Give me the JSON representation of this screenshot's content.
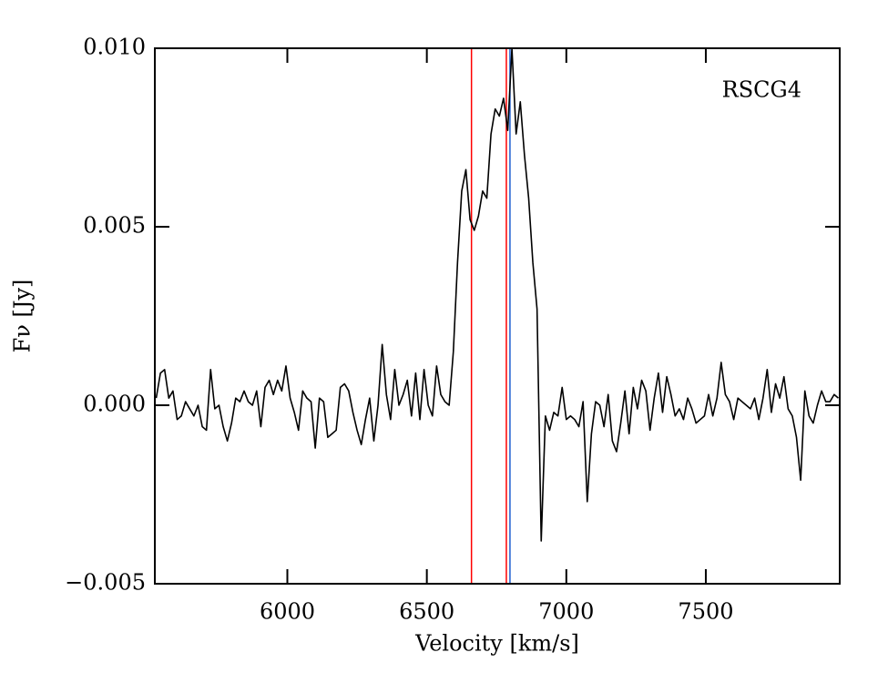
{
  "chart_data": {
    "type": "line",
    "xlabel": "Velocity [km/s]",
    "ylabel": "Fν [Jy]",
    "annotation": "RSCG4",
    "xlim": [
      5525,
      7980
    ],
    "ylim": [
      -0.005,
      0.01
    ],
    "xticks": [
      6000,
      6500,
      7000,
      7500
    ],
    "yticks": [
      {
        "value": -0.005,
        "label": "−0.005"
      },
      {
        "value": 0,
        "label": "0.000"
      },
      {
        "value": 0.005,
        "label": "0.005"
      },
      {
        "value": 0.01,
        "label": "0.010"
      }
    ],
    "vlines": [
      {
        "x": 6660,
        "color": "#ff0000"
      },
      {
        "x": 6785,
        "color": "#ff0000"
      },
      {
        "x": 6798,
        "color": "#1f5fd0"
      }
    ],
    "color": "#000000",
    "x": [
      5530,
      5545,
      5560,
      5575,
      5590,
      5605,
      5620,
      5635,
      5650,
      5665,
      5680,
      5695,
      5710,
      5725,
      5740,
      5755,
      5770,
      5785,
      5800,
      5815,
      5830,
      5845,
      5860,
      5875,
      5890,
      5905,
      5920,
      5935,
      5950,
      5965,
      5980,
      5995,
      6010,
      6025,
      6040,
      6055,
      6070,
      6085,
      6100,
      6115,
      6130,
      6145,
      6160,
      6175,
      6190,
      6205,
      6220,
      6235,
      6250,
      6265,
      6280,
      6295,
      6310,
      6325,
      6340,
      6355,
      6370,
      6385,
      6400,
      6415,
      6430,
      6445,
      6460,
      6475,
      6490,
      6505,
      6520,
      6535,
      6550,
      6565,
      6580,
      6595,
      6610,
      6625,
      6640,
      6655,
      6670,
      6685,
      6700,
      6715,
      6730,
      6745,
      6760,
      6775,
      6790,
      6805,
      6820,
      6835,
      6850,
      6865,
      6880,
      6895,
      6910,
      6925,
      6940,
      6955,
      6970,
      6985,
      7000,
      7015,
      7030,
      7045,
      7060,
      7075,
      7090,
      7105,
      7120,
      7135,
      7150,
      7165,
      7180,
      7195,
      7210,
      7225,
      7240,
      7255,
      7270,
      7285,
      7300,
      7315,
      7330,
      7345,
      7360,
      7375,
      7390,
      7405,
      7420,
      7435,
      7450,
      7465,
      7480,
      7495,
      7510,
      7525,
      7540,
      7555,
      7570,
      7585,
      7600,
      7615,
      7630,
      7645,
      7660,
      7675,
      7690,
      7705,
      7720,
      7735,
      7750,
      7765,
      7780,
      7795,
      7810,
      7825,
      7840,
      7855,
      7870,
      7885,
      7900,
      7915,
      7930,
      7945,
      7960,
      7975
    ],
    "values": [
      0.0002,
      0.0009,
      0.001,
      0.0002,
      0.0004,
      -0.0004,
      -0.0003,
      0.0001,
      -0.0001,
      -0.0003,
      0.0,
      -0.0006,
      -0.0007,
      0.001,
      -0.0001,
      0.0,
      -0.0006,
      -0.001,
      -0.0005,
      0.0002,
      0.0001,
      0.0004,
      0.0001,
      0.0,
      0.0004,
      -0.0006,
      0.0005,
      0.0007,
      0.0003,
      0.0007,
      0.0004,
      0.0011,
      0.0002,
      -0.0002,
      -0.0007,
      0.0004,
      0.0002,
      0.0001,
      -0.0012,
      0.0002,
      0.0001,
      -0.0009,
      -0.0008,
      -0.0007,
      0.0005,
      0.0006,
      0.0004,
      -0.0002,
      -0.0007,
      -0.0011,
      -0.0004,
      0.0002,
      -0.001,
      0.0,
      0.0017,
      0.0003,
      -0.0004,
      0.001,
      0.0,
      0.0003,
      0.0007,
      -0.0003,
      0.0009,
      -0.0004,
      0.001,
      0.0,
      -0.0003,
      0.0011,
      0.0003,
      0.0001,
      0.0,
      0.0015,
      0.004,
      0.006,
      0.0066,
      0.0052,
      0.0049,
      0.0053,
      0.006,
      0.0058,
      0.0076,
      0.0083,
      0.0081,
      0.0086,
      0.0077,
      0.01,
      0.0076,
      0.0085,
      0.007,
      0.0058,
      0.004,
      0.0027,
      -0.0038,
      -0.0003,
      -0.0007,
      -0.0002,
      -0.0003,
      0.0005,
      -0.0004,
      -0.0003,
      -0.0004,
      -0.0006,
      0.0001,
      -0.0027,
      -0.0008,
      0.0001,
      0.0,
      -0.0006,
      0.0003,
      -0.001,
      -0.0013,
      -0.0005,
      0.0004,
      -0.0008,
      0.0005,
      -0.0001,
      0.0007,
      0.0004,
      -0.0007,
      0.0002,
      0.0009,
      -0.0002,
      0.0008,
      0.0003,
      -0.0003,
      -0.0001,
      -0.0004,
      0.0002,
      -0.0001,
      -0.0005,
      -0.0004,
      -0.0003,
      0.0003,
      -0.0003,
      0.0002,
      0.0012,
      0.0003,
      0.0001,
      -0.0004,
      0.0002,
      0.0001,
      0.0,
      -0.0001,
      0.0002,
      -0.0004,
      0.0002,
      0.001,
      -0.0002,
      0.0006,
      0.0002,
      0.0008,
      -0.0001,
      -0.0003,
      -0.0009,
      -0.0021,
      0.0004,
      -0.0003,
      -0.0005,
      0.0,
      0.0004,
      0.0001,
      0.0001,
      0.0003,
      0.0002
    ]
  }
}
